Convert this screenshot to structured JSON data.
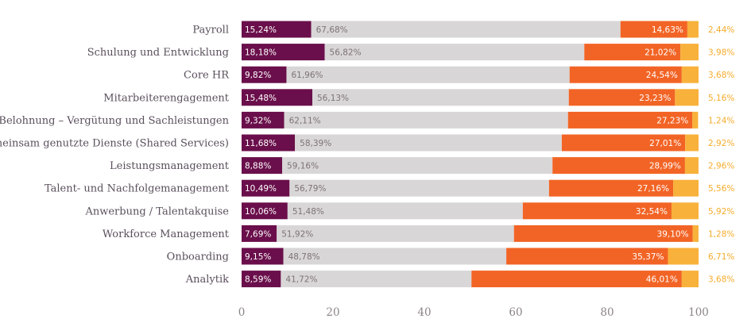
{
  "chart_data": {
    "type": "bar",
    "orientation": "horizontal",
    "stacked": true,
    "xlim": [
      0,
      100
    ],
    "xticks": [
      "0",
      "20",
      "40",
      "60",
      "80",
      "100"
    ],
    "grid": false,
    "legend": "none",
    "categories": [
      "Payroll",
      "Schulung und Entwicklung",
      "Core HR",
      "Mitarbeiterengagement",
      "Belohnung – Vergütung und Sachleistungen",
      "Gemeinsam genutzte Dienste (Shared Services)",
      "Leistungsmanagement",
      "Talent- und Nachfolgemanagement",
      "Anwerbung / Talentakquise",
      "Workforce Management",
      "Onboarding",
      "Analytik"
    ],
    "series": [
      {
        "color": "#6a0f4b",
        "values": [
          15.24,
          18.18,
          9.82,
          15.48,
          9.32,
          11.68,
          8.88,
          10.49,
          10.06,
          7.69,
          9.15,
          8.59
        ],
        "labels": [
          "15,24%",
          "18,18%",
          "9,82%",
          "15,48%",
          "9,32%",
          "11,68%",
          "8,88%",
          "10,49%",
          "10,06%",
          "7,69%",
          "9,15%",
          "8,59%"
        ]
      },
      {
        "color": "#d9d6d7",
        "values": [
          67.68,
          56.82,
          61.96,
          56.13,
          62.11,
          58.39,
          59.16,
          56.79,
          51.48,
          51.92,
          48.78,
          41.72
        ],
        "labels": [
          "67,68%",
          "56,82%",
          "61,96%",
          "56,13%",
          "62,11%",
          "58,39%",
          "59,16%",
          "56,79%",
          "51,48%",
          "51,92%",
          "48,78%",
          "41,72%"
        ]
      },
      {
        "color": "#f26425",
        "values": [
          14.63,
          21.02,
          24.54,
          23.23,
          27.23,
          27.01,
          28.99,
          27.16,
          32.54,
          39.1,
          35.37,
          46.01
        ],
        "labels": [
          "14,63%",
          "21,02%",
          "24,54%",
          "23,23%",
          "27,23%",
          "27,01%",
          "28,99%",
          "27,16%",
          "32,54%",
          "39,10%",
          "35,37%",
          "46,01%"
        ]
      },
      {
        "color": "#f8b13b",
        "values": [
          2.44,
          3.98,
          3.68,
          5.16,
          1.24,
          2.92,
          2.96,
          5.56,
          5.92,
          1.28,
          6.71,
          3.68
        ],
        "labels": [
          "2,44%",
          "3,98%",
          "3,68%",
          "5,16%",
          "1,24%",
          "2,92%",
          "2,96%",
          "5,56%",
          "5,92%",
          "1,28%",
          "6,71%",
          "3,68%"
        ]
      }
    ]
  }
}
